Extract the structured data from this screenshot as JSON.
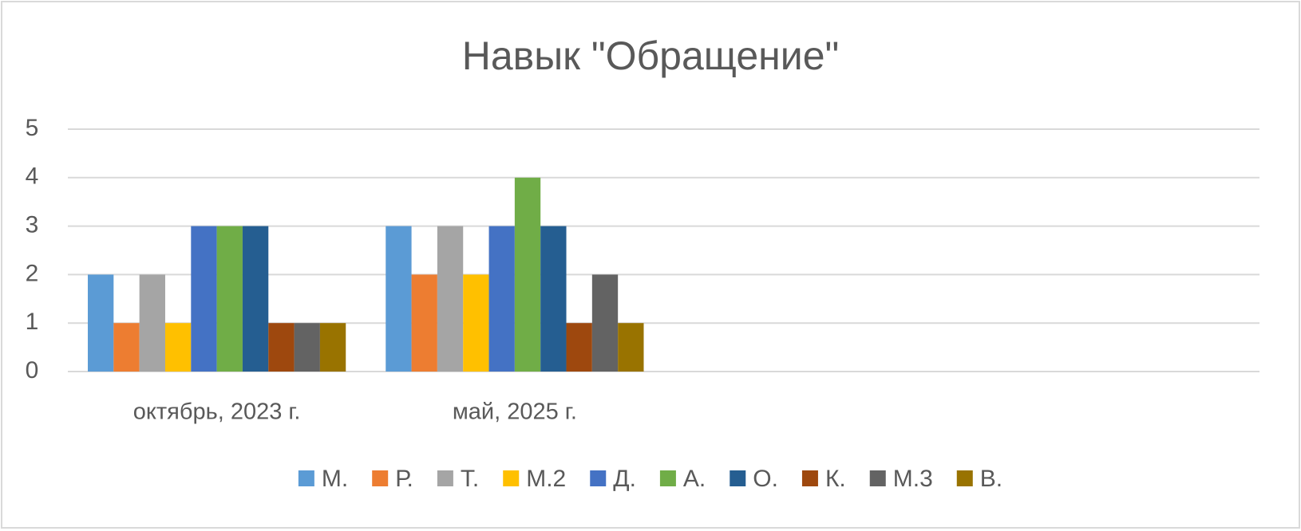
{
  "chart_data": {
    "type": "bar",
    "title": "Навык \"Обращение\"",
    "categories": [
      "октябрь, 2023 г.",
      "май, 2025 г.",
      null,
      null
    ],
    "series": [
      {
        "name": "М.",
        "color": "#5b9bd5",
        "values": [
          2,
          3,
          null,
          null
        ]
      },
      {
        "name": "Р.",
        "color": "#ed7d31",
        "values": [
          1,
          2,
          null,
          null
        ]
      },
      {
        "name": "Т.",
        "color": "#a5a5a5",
        "values": [
          2,
          3,
          null,
          null
        ]
      },
      {
        "name": "М.2",
        "color": "#ffc000",
        "values": [
          1,
          2,
          null,
          null
        ]
      },
      {
        "name": "Д.",
        "color": "#4472c4",
        "values": [
          3,
          3,
          null,
          null
        ]
      },
      {
        "name": "А.",
        "color": "#70ad47",
        "values": [
          3,
          4,
          null,
          null
        ]
      },
      {
        "name": "О.",
        "color": "#255e91",
        "values": [
          3,
          3,
          null,
          null
        ]
      },
      {
        "name": "К.",
        "color": "#9e480e",
        "values": [
          1,
          1,
          null,
          null
        ]
      },
      {
        "name": "М.3",
        "color": "#636363",
        "values": [
          1,
          2,
          null,
          null
        ]
      },
      {
        "name": "В.",
        "color": "#997300",
        "values": [
          1,
          1,
          null,
          null
        ]
      }
    ],
    "ylim": [
      0,
      5
    ],
    "yticks": [
      0,
      1,
      2,
      3,
      4,
      5
    ],
    "grid": true,
    "legend": "bottom"
  }
}
